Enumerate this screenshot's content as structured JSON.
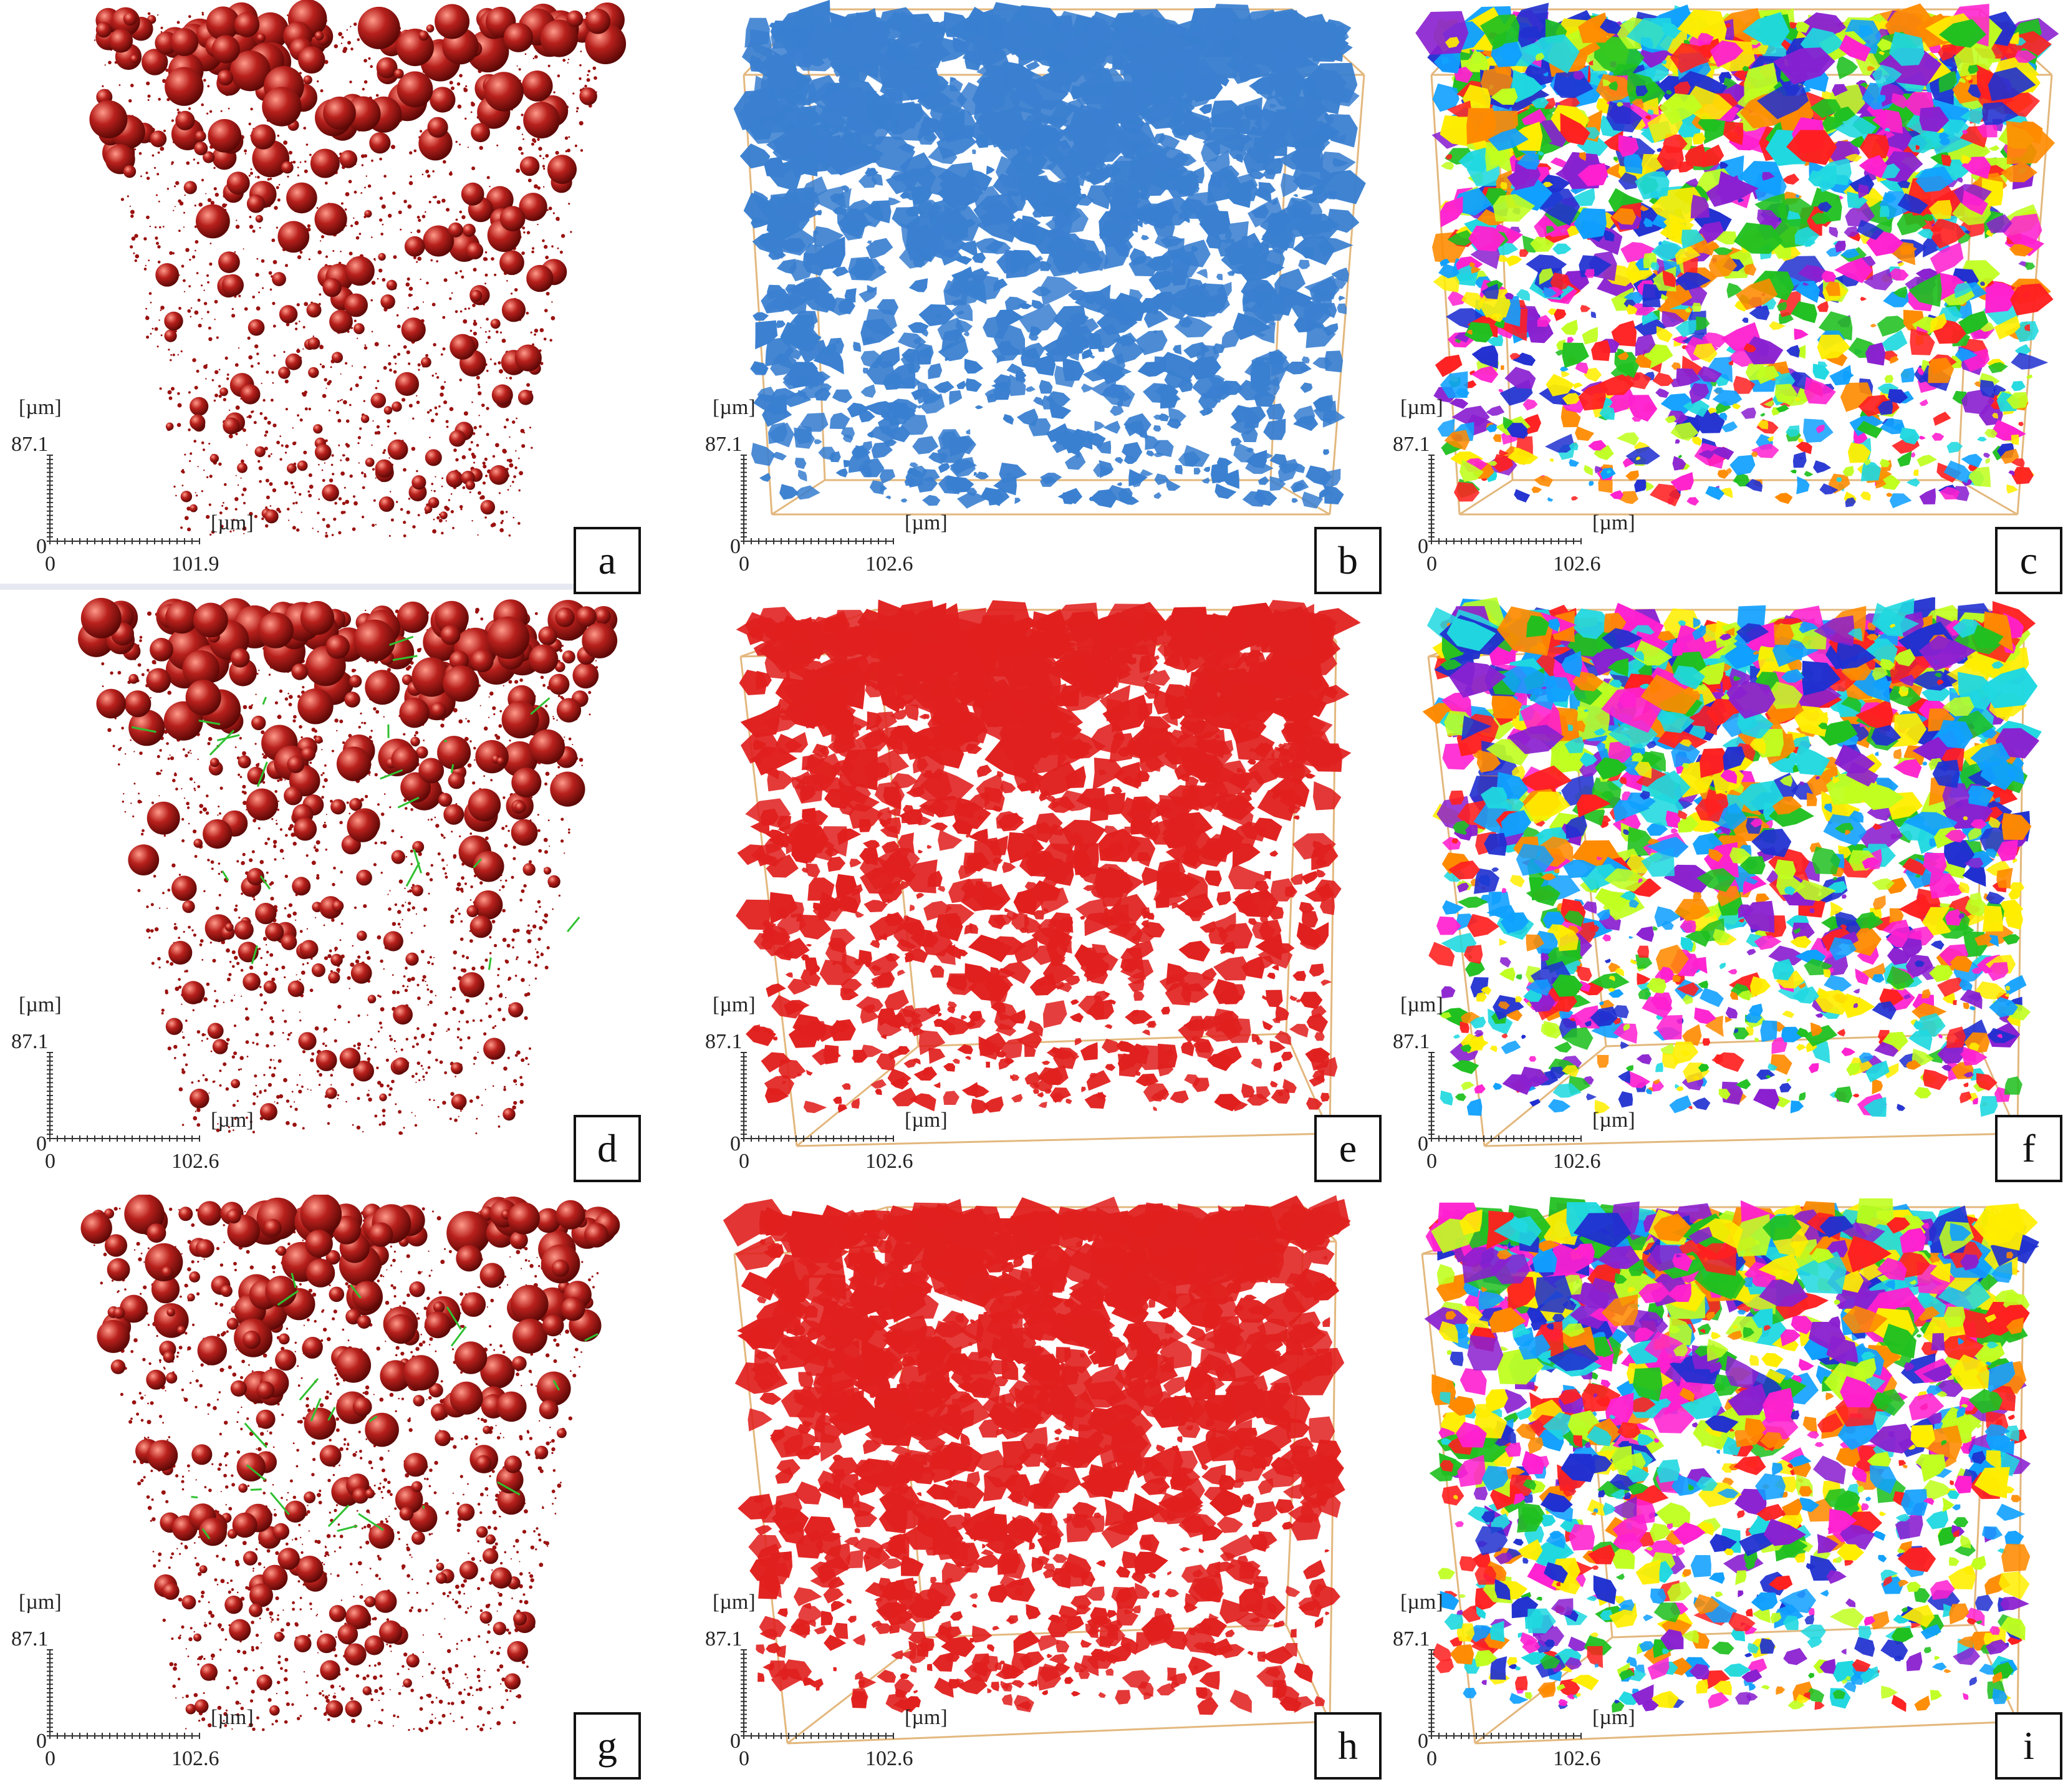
{
  "panels": [
    {
      "id": "a",
      "label": "a",
      "type": "spheres",
      "color": "#b8201c",
      "y_unit": "[µm]",
      "y_max": "87.1",
      "x_unit": "[µm]",
      "x_zero": "0",
      "x_max": "101.9"
    },
    {
      "id": "b",
      "label": "b",
      "type": "blobs",
      "color": "#3a7fd0",
      "y_unit": "[µm]",
      "y_max": "87.1",
      "x_unit": "[µm]",
      "x_zero": "0",
      "x_max": "102.6"
    },
    {
      "id": "c",
      "label": "c",
      "type": "multi",
      "color": "#cc3300",
      "y_unit": "[µm]",
      "y_max": "87.1",
      "x_unit": "[µm]",
      "x_zero": "0",
      "x_max": "102.6"
    },
    {
      "id": "d",
      "label": "d",
      "type": "spheres",
      "color": "#b8201c",
      "y_unit": "[µm]",
      "y_max": "87.1",
      "x_unit": "[µm]",
      "x_zero": "0",
      "x_max": "102.6"
    },
    {
      "id": "e",
      "label": "e",
      "type": "blobs",
      "color": "#e0201e",
      "y_unit": "[µm]",
      "y_max": "87.1",
      "x_unit": "[µm]",
      "x_zero": "0",
      "x_max": "102.6"
    },
    {
      "id": "f",
      "label": "f",
      "type": "multi",
      "color": "#cc3300",
      "y_unit": "[µm]",
      "y_max": "87.1",
      "x_unit": "[µm]",
      "x_zero": "0",
      "x_max": "102.6"
    },
    {
      "id": "g",
      "label": "g",
      "type": "spheres",
      "color": "#b8201c",
      "y_unit": "[µm]",
      "y_max": "87.1",
      "x_unit": "[µm]",
      "x_zero": "0",
      "x_max": "102.6"
    },
    {
      "id": "h",
      "label": "h",
      "type": "blobs",
      "color": "#e0201e",
      "y_unit": "[µm]",
      "y_max": "87.1",
      "x_unit": "[µm]",
      "x_zero": "0",
      "x_max": "102.6"
    },
    {
      "id": "i",
      "label": "i",
      "type": "multi",
      "color": "#cc3300",
      "y_unit": "[µm]",
      "y_max": "87.1",
      "x_unit": "[µm]",
      "x_zero": "0",
      "x_max": "102.6"
    }
  ],
  "palette": [
    "#ff2020",
    "#20c020",
    "#2030d0",
    "#ffee00",
    "#ff20d0",
    "#20d8e0",
    "#ff8a00",
    "#8a20d0",
    "#10a0ff",
    "#c0ff20"
  ],
  "box_color": "#e0b070",
  "link_color": "#30c030"
}
